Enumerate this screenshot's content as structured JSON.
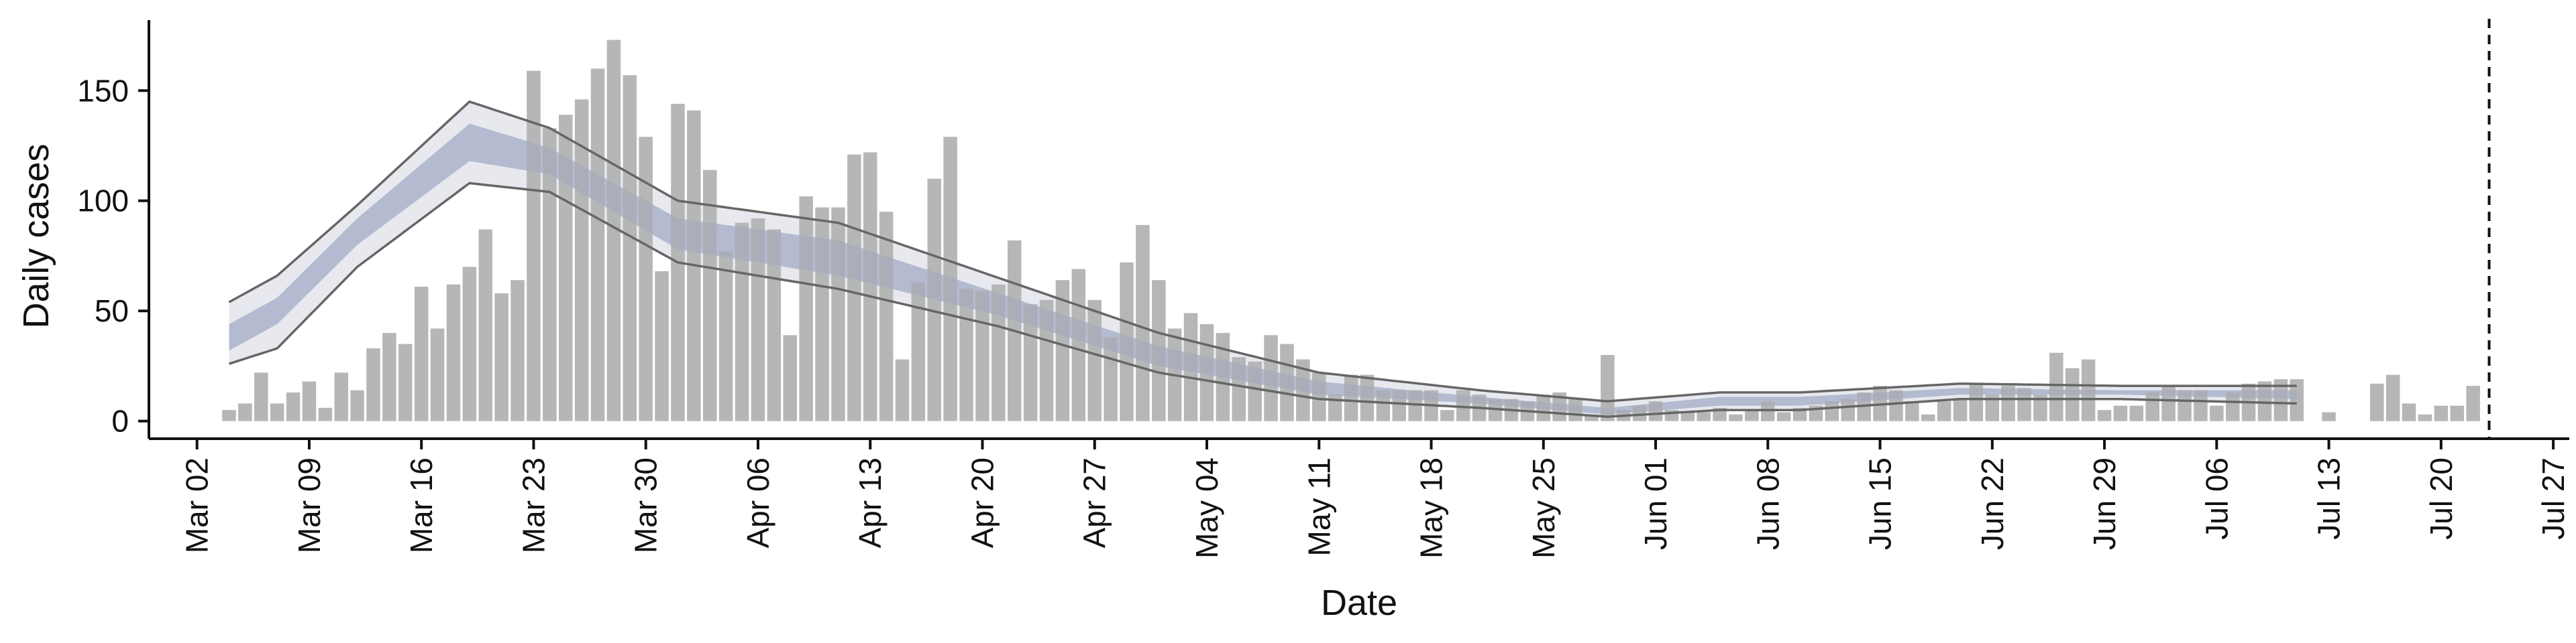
{
  "chart_data": {
    "type": "bar",
    "xlabel": "Date",
    "ylabel": "Daily cases",
    "x_tick_labels": [
      "Mar 02",
      "Mar 09",
      "Mar 16",
      "Mar 23",
      "Mar 30",
      "Apr 06",
      "Apr 13",
      "Apr 20",
      "Apr 27",
      "May 04",
      "May 11",
      "May 18",
      "May 25",
      "Jun 01",
      "Jun 08",
      "Jun 15",
      "Jun 22",
      "Jun 29",
      "Jul 06",
      "Jul 13",
      "Jul 20",
      "Jul 27"
    ],
    "y_ticks": [
      0,
      50,
      100,
      150
    ],
    "y_tick_labels": [
      "0",
      "50",
      "100",
      "150"
    ],
    "ylim": [
      -8,
      182
    ],
    "xlim_day_index": [
      -3,
      148
    ],
    "start_date": "Mar 02",
    "vline_day_index": 143,
    "grid": false,
    "legend": "none",
    "colors": {
      "bar": "#b3b3b3",
      "band_outer": "#e7e9ef",
      "band_inner": "#c2c8da",
      "median": "#9aa3bd",
      "bound_line": "#666666",
      "axis": "#111111"
    },
    "daily_cases": [
      {
        "day": 2,
        "value": 5
      },
      {
        "day": 3,
        "value": 8
      },
      {
        "day": 4,
        "value": 22
      },
      {
        "day": 5,
        "value": 8
      },
      {
        "day": 6,
        "value": 13
      },
      {
        "day": 7,
        "value": 18
      },
      {
        "day": 8,
        "value": 6
      },
      {
        "day": 9,
        "value": 22
      },
      {
        "day": 10,
        "value": 14
      },
      {
        "day": 11,
        "value": 33
      },
      {
        "day": 12,
        "value": 40
      },
      {
        "day": 13,
        "value": 35
      },
      {
        "day": 14,
        "value": 61
      },
      {
        "day": 15,
        "value": 42
      },
      {
        "day": 16,
        "value": 62
      },
      {
        "day": 17,
        "value": 70
      },
      {
        "day": 18,
        "value": 87
      },
      {
        "day": 19,
        "value": 58
      },
      {
        "day": 20,
        "value": 64
      },
      {
        "day": 21,
        "value": 159
      },
      {
        "day": 22,
        "value": 133
      },
      {
        "day": 23,
        "value": 139
      },
      {
        "day": 24,
        "value": 146
      },
      {
        "day": 25,
        "value": 160
      },
      {
        "day": 26,
        "value": 173
      },
      {
        "day": 27,
        "value": 157
      },
      {
        "day": 28,
        "value": 129
      },
      {
        "day": 29,
        "value": 68
      },
      {
        "day": 30,
        "value": 144
      },
      {
        "day": 31,
        "value": 141
      },
      {
        "day": 32,
        "value": 114
      },
      {
        "day": 33,
        "value": 77
      },
      {
        "day": 34,
        "value": 90
      },
      {
        "day": 35,
        "value": 92
      },
      {
        "day": 36,
        "value": 87
      },
      {
        "day": 37,
        "value": 39
      },
      {
        "day": 38,
        "value": 102
      },
      {
        "day": 39,
        "value": 97
      },
      {
        "day": 40,
        "value": 97
      },
      {
        "day": 41,
        "value": 121
      },
      {
        "day": 42,
        "value": 122
      },
      {
        "day": 43,
        "value": 95
      },
      {
        "day": 44,
        "value": 28
      },
      {
        "day": 45,
        "value": 63
      },
      {
        "day": 46,
        "value": 110
      },
      {
        "day": 47,
        "value": 129
      },
      {
        "day": 48,
        "value": 60
      },
      {
        "day": 49,
        "value": 59
      },
      {
        "day": 50,
        "value": 62
      },
      {
        "day": 51,
        "value": 82
      },
      {
        "day": 52,
        "value": 53
      },
      {
        "day": 53,
        "value": 55
      },
      {
        "day": 54,
        "value": 64
      },
      {
        "day": 55,
        "value": 69
      },
      {
        "day": 56,
        "value": 55
      },
      {
        "day": 57,
        "value": 38
      },
      {
        "day": 58,
        "value": 72
      },
      {
        "day": 59,
        "value": 89
      },
      {
        "day": 60,
        "value": 64
      },
      {
        "day": 61,
        "value": 42
      },
      {
        "day": 62,
        "value": 49
      },
      {
        "day": 63,
        "value": 44
      },
      {
        "day": 64,
        "value": 40
      },
      {
        "day": 65,
        "value": 29
      },
      {
        "day": 66,
        "value": 27
      },
      {
        "day": 67,
        "value": 39
      },
      {
        "day": 68,
        "value": 35
      },
      {
        "day": 69,
        "value": 28
      },
      {
        "day": 70,
        "value": 22
      },
      {
        "day": 71,
        "value": 12
      },
      {
        "day": 72,
        "value": 21
      },
      {
        "day": 73,
        "value": 21
      },
      {
        "day": 74,
        "value": 14
      },
      {
        "day": 75,
        "value": 14
      },
      {
        "day": 76,
        "value": 14
      },
      {
        "day": 77,
        "value": 14
      },
      {
        "day": 78,
        "value": 5
      },
      {
        "day": 79,
        "value": 14
      },
      {
        "day": 80,
        "value": 12
      },
      {
        "day": 81,
        "value": 10
      },
      {
        "day": 82,
        "value": 10
      },
      {
        "day": 83,
        "value": 9
      },
      {
        "day": 84,
        "value": 12
      },
      {
        "day": 85,
        "value": 13
      },
      {
        "day": 86,
        "value": 10
      },
      {
        "day": 87,
        "value": 3
      },
      {
        "day": 88,
        "value": 30
      },
      {
        "day": 89,
        "value": 5
      },
      {
        "day": 90,
        "value": 7
      },
      {
        "day": 91,
        "value": 9
      },
      {
        "day": 92,
        "value": 5
      },
      {
        "day": 93,
        "value": 4
      },
      {
        "day": 94,
        "value": 4
      },
      {
        "day": 95,
        "value": 6
      },
      {
        "day": 96,
        "value": 3
      },
      {
        "day": 97,
        "value": 5
      },
      {
        "day": 98,
        "value": 9
      },
      {
        "day": 99,
        "value": 4
      },
      {
        "day": 100,
        "value": 6
      },
      {
        "day": 101,
        "value": 7
      },
      {
        "day": 102,
        "value": 9
      },
      {
        "day": 103,
        "value": 10
      },
      {
        "day": 104,
        "value": 13
      },
      {
        "day": 105,
        "value": 16
      },
      {
        "day": 106,
        "value": 14
      },
      {
        "day": 107,
        "value": 9
      },
      {
        "day": 108,
        "value": 3
      },
      {
        "day": 109,
        "value": 9
      },
      {
        "day": 110,
        "value": 10
      },
      {
        "day": 111,
        "value": 17
      },
      {
        "day": 112,
        "value": 12
      },
      {
        "day": 113,
        "value": 16
      },
      {
        "day": 114,
        "value": 15
      },
      {
        "day": 115,
        "value": 12
      },
      {
        "day": 116,
        "value": 31
      },
      {
        "day": 117,
        "value": 24
      },
      {
        "day": 118,
        "value": 28
      },
      {
        "day": 119,
        "value": 5
      },
      {
        "day": 120,
        "value": 7
      },
      {
        "day": 121,
        "value": 7
      },
      {
        "day": 122,
        "value": 13
      },
      {
        "day": 123,
        "value": 16
      },
      {
        "day": 124,
        "value": 14
      },
      {
        "day": 125,
        "value": 14
      },
      {
        "day": 126,
        "value": 7
      },
      {
        "day": 127,
        "value": 13
      },
      {
        "day": 128,
        "value": 17
      },
      {
        "day": 129,
        "value": 18
      },
      {
        "day": 130,
        "value": 19
      },
      {
        "day": 131,
        "value": 19
      },
      {
        "day": 133,
        "value": 4
      },
      {
        "day": 136,
        "value": 17
      },
      {
        "day": 137,
        "value": 21
      },
      {
        "day": 138,
        "value": 8
      },
      {
        "day": 139,
        "value": 3
      },
      {
        "day": 140,
        "value": 7
      },
      {
        "day": 141,
        "value": 7
      },
      {
        "day": 142,
        "value": 16
      }
    ],
    "estimate_band": {
      "day": [
        2,
        5,
        10,
        17,
        22,
        30,
        40,
        50,
        60,
        70,
        80,
        88,
        95,
        100,
        110,
        120,
        131
      ],
      "lower_90": [
        26,
        33,
        70,
        108,
        104,
        72,
        60,
        43,
        22,
        10,
        6,
        2,
        5,
        5,
        10,
        10,
        8
      ],
      "upper_90": [
        54,
        66,
        98,
        145,
        133,
        100,
        90,
        65,
        40,
        22,
        14,
        9,
        13,
        13,
        17,
        16,
        16
      ],
      "lower_50": [
        32,
        44,
        80,
        118,
        112,
        78,
        66,
        48,
        25,
        12,
        8,
        3,
        7,
        7,
        12,
        12,
        10
      ],
      "upper_50": [
        44,
        56,
        92,
        135,
        124,
        92,
        82,
        58,
        34,
        18,
        11,
        6,
        11,
        11,
        15,
        14,
        14
      ],
      "median": [
        38,
        50,
        86,
        127,
        118,
        85,
        74,
        53,
        30,
        15,
        10,
        5,
        9,
        9,
        14,
        13,
        12
      ]
    }
  }
}
